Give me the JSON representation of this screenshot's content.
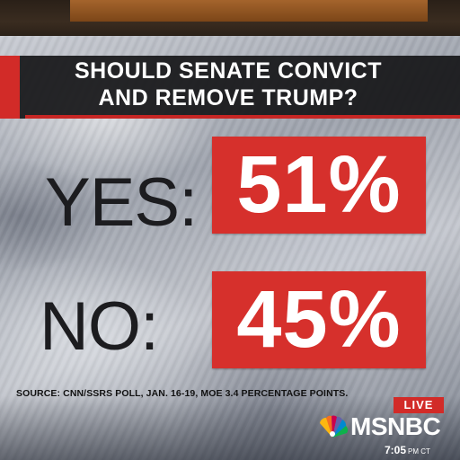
{
  "graphic": {
    "title_line1": "SHOULD SENATE CONVICT",
    "title_line2": "AND REMOVE TRUMP?",
    "rows": [
      {
        "label": "YES:",
        "value": "51%"
      },
      {
        "label": "NO:",
        "value": "45%"
      }
    ],
    "source": "SOURCE: CNN/SSRS POLL, JAN. 16-19, MOE 3.4 PERCENTAGE POINTS."
  },
  "broadcast": {
    "live_badge": "LIVE",
    "network": "MSNBC",
    "time": "7:05",
    "time_zone": "PM CT",
    "logo_icon": "peacock-logo-icon"
  },
  "colors": {
    "accent_red": "#d6302c",
    "title_bar": "#161618",
    "label_text": "#1c1c1f"
  }
}
